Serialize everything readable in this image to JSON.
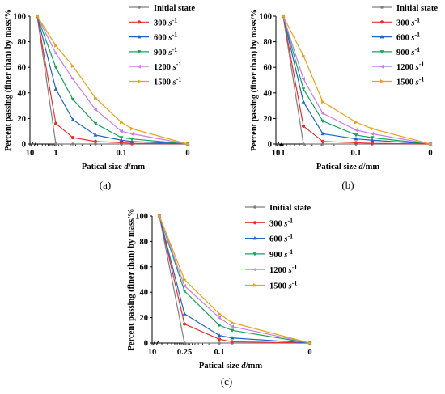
{
  "colors": {
    "Initial state": "#7f7f7f",
    "300 s-1": "#e8312f",
    "600 s-1": "#1f64c8",
    "900 s-1": "#17a35c",
    "1200 s-1": "#c77ee8",
    "1500 s-1": "#e8a317"
  },
  "legend_items": [
    {
      "base": "Initial state",
      "sup": ""
    },
    {
      "base": "300 s",
      "sup": "-1"
    },
    {
      "base": "600 s",
      "sup": "-1"
    },
    {
      "base": "900 s",
      "sup": "-1"
    },
    {
      "base": "1200 s",
      "sup": "-1"
    },
    {
      "base": "1500 s",
      "sup": "-1"
    }
  ],
  "chart_data": [
    {
      "type": "line",
      "panel_label": "(a)",
      "xlabel": "Patical size d/mm",
      "ylabel": "Percent passing (finer than) by mass/%",
      "x_axis_note": "reversed, sieve sizes from 10 down to 0",
      "xticks": [
        "10",
        "1",
        "0.1",
        "0"
      ],
      "yticks": [
        "0",
        "20",
        "40",
        "60",
        "80",
        "100"
      ],
      "ylim": [
        0,
        100
      ],
      "x_categories": [
        "5",
        "1",
        "0.5",
        "0.25",
        "0.1",
        "0.075",
        "0"
      ],
      "series": [
        {
          "name": "Initial state",
          "values": [
            100,
            0,
            0,
            0,
            0,
            0,
            0
          ]
        },
        {
          "name": "300 s-1",
          "values": [
            100,
            16,
            5,
            2,
            1,
            0.5,
            0
          ]
        },
        {
          "name": "600 s-1",
          "values": [
            100,
            43,
            19,
            7,
            3,
            2,
            0
          ]
        },
        {
          "name": "900 s-1",
          "values": [
            100,
            60,
            35,
            16,
            5,
            4,
            0
          ]
        },
        {
          "name": "1200 s-1",
          "values": [
            100,
            71,
            51,
            27,
            10,
            8,
            0
          ]
        },
        {
          "name": "1500 s-1",
          "values": [
            100,
            77,
            61,
            36,
            17,
            12,
            0
          ]
        }
      ]
    },
    {
      "type": "line",
      "panel_label": "(b)",
      "xlabel": "Patical size d/mm",
      "ylabel": "Percent passing (finer than) by mass/%",
      "x_axis_note": "reversed, sieve sizes from 10 down to 0",
      "xticks": [
        "10",
        "1",
        "0.1",
        "0"
      ],
      "yticks": [
        "0",
        "20",
        "40",
        "60",
        "80",
        "100"
      ],
      "ylim": [
        0,
        100
      ],
      "x_categories": [
        "2",
        "0.5",
        "0.25",
        "0.1",
        "0.075",
        "0"
      ],
      "series": [
        {
          "name": "Initial state",
          "values": [
            100,
            0,
            0,
            0,
            0,
            0
          ]
        },
        {
          "name": "300 s-1",
          "values": [
            100,
            14,
            2,
            1,
            0.5,
            0
          ]
        },
        {
          "name": "600 s-1",
          "values": [
            100,
            33,
            8,
            4,
            3,
            0
          ]
        },
        {
          "name": "900 s-1",
          "values": [
            100,
            43,
            18,
            7,
            5,
            0
          ]
        },
        {
          "name": "1200 s-1",
          "values": [
            100,
            51,
            24,
            11,
            8,
            0
          ]
        },
        {
          "name": "1500 s-1",
          "values": [
            100,
            69,
            33,
            17,
            12,
            0
          ]
        }
      ]
    },
    {
      "type": "line",
      "panel_label": "(c)",
      "xlabel": "Patical size d/mm",
      "ylabel": "Percent passing (finer than) by mass/%",
      "x_axis_note": "reversed, sieve sizes from 10 down to 0",
      "xticks": [
        "10",
        "0.25",
        "0.1",
        "0"
      ],
      "yticks": [
        "0",
        "20",
        "40",
        "60",
        "80",
        "100"
      ],
      "ylim": [
        0,
        100
      ],
      "x_categories": [
        "0.5",
        "0.25",
        "0.1",
        "0.075",
        "0"
      ],
      "series": [
        {
          "name": "Initial state",
          "values": [
            100,
            0,
            0,
            0,
            0
          ]
        },
        {
          "name": "300 s-1",
          "values": [
            100,
            15,
            3,
            1,
            0
          ]
        },
        {
          "name": "600 s-1",
          "values": [
            100,
            23,
            6,
            4,
            0
          ]
        },
        {
          "name": "900 s-1",
          "values": [
            100,
            41,
            14,
            10,
            0
          ]
        },
        {
          "name": "1200 s-1",
          "values": [
            100,
            45,
            20,
            13,
            0
          ]
        },
        {
          "name": "1500 s-1",
          "values": [
            100,
            50,
            23,
            16,
            0
          ]
        }
      ]
    }
  ]
}
